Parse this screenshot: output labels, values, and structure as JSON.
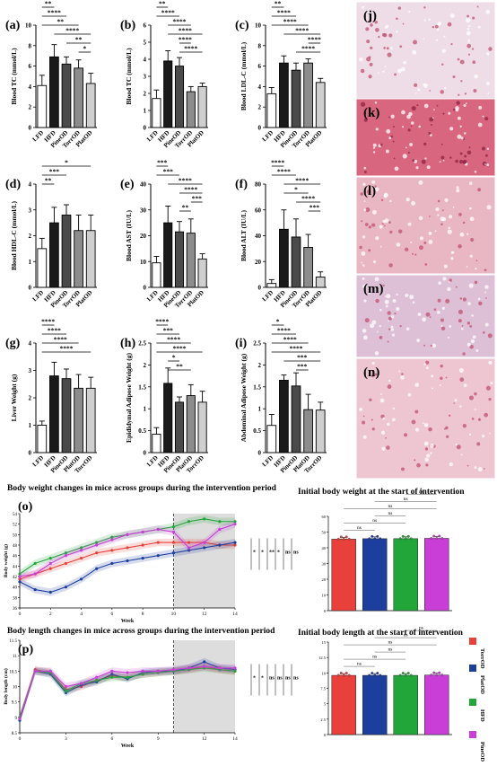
{
  "colors": {
    "bar_fills": [
      "#ffffff",
      "#1a1a1a",
      "#4a4a4a",
      "#8c8c8c",
      "#cfcfcf"
    ],
    "series": [
      "#e8403a",
      "#1c3f9e",
      "#22a63a",
      "#c83ed6"
    ],
    "shade": "#dddddd",
    "tissue_pink": "#e9b4c6",
    "tissue_red": "#d96a88"
  },
  "groups_std": [
    "LFD",
    "HFD",
    "PineOD",
    "TorrOD",
    "PlatOD"
  ],
  "groups_alt": [
    "LFD",
    "HFD",
    "PineOD",
    "PlatOD",
    "TorrOD"
  ],
  "sig_labels": {
    "a": [
      "**",
      "****",
      "**",
      "****",
      "**",
      "*"
    ],
    "b": [
      "**",
      "****",
      "****",
      "****",
      "****",
      "****"
    ],
    "c": [
      "**",
      "****",
      "****",
      "****",
      "****",
      "****"
    ],
    "d": [
      "*",
      "***",
      "**"
    ],
    "e": [
      "***",
      "***",
      "****",
      "****",
      "***",
      "**"
    ],
    "f": [
      "****",
      "****",
      "****",
      "*",
      "****",
      "***"
    ],
    "g": [
      "****",
      "****",
      "****",
      "****"
    ],
    "h": [
      "****",
      "***",
      "****",
      "****",
      "*",
      "**"
    ],
    "i": [
      "*",
      "****",
      "****",
      "****",
      "***",
      "***"
    ]
  },
  "histology_labels": [
    "(j)",
    "(k)",
    "(l)",
    "(m)",
    "(n)"
  ],
  "chart_data": [
    {
      "id": "a",
      "label": "(a)",
      "type": "bar",
      "ylabel": "Blood TC (mmol/L)",
      "categories": [
        "LFD",
        "HFD",
        "PineOD",
        "TorrOD",
        "PlatOD"
      ],
      "values": [
        4.1,
        6.9,
        6.2,
        5.8,
        4.3
      ],
      "errors": [
        1.0,
        1.2,
        0.7,
        0.8,
        1.0
      ],
      "ylim": [
        0,
        10
      ],
      "yticks": [
        0,
        2,
        4,
        6,
        8,
        10
      ]
    },
    {
      "id": "b",
      "label": "(b)",
      "type": "bar",
      "ylabel": "Blood TC (mmol/L)",
      "categories": [
        "LFD",
        "HFD",
        "PineOD",
        "TorrOD",
        "PlatOD"
      ],
      "values": [
        1.7,
        3.9,
        3.6,
        2.1,
        2.4
      ],
      "errors": [
        0.5,
        0.6,
        0.5,
        0.3,
        0.2
      ],
      "ylim": [
        0,
        6
      ],
      "yticks": [
        0,
        1,
        2,
        3,
        4,
        5,
        6
      ]
    },
    {
      "id": "c",
      "label": "(c)",
      "type": "bar",
      "ylabel": "Blood LDL-C (mmol/L)",
      "categories": [
        "LFD",
        "HFD",
        "PineOD",
        "TorrOD",
        "PlatOD"
      ],
      "values": [
        3.3,
        6.3,
        5.6,
        6.3,
        4.4
      ],
      "errors": [
        0.6,
        0.7,
        0.7,
        0.4,
        0.4
      ],
      "ylim": [
        0,
        10
      ],
      "yticks": [
        0,
        2,
        4,
        6,
        8,
        10
      ]
    },
    {
      "id": "d",
      "label": "(d)",
      "type": "bar",
      "ylabel": "Blood HDL-C (mmol/L)",
      "categories": [
        "LFD",
        "HFD",
        "PineOD",
        "TorrOD",
        "PlatOD"
      ],
      "values": [
        1.5,
        2.5,
        2.8,
        2.2,
        2.2
      ],
      "errors": [
        0.4,
        0.6,
        0.4,
        0.6,
        0.6
      ],
      "ylim": [
        0,
        4
      ],
      "yticks": [
        0,
        1,
        2,
        3,
        4
      ]
    },
    {
      "id": "e",
      "label": "(e)",
      "type": "bar",
      "ylabel": "Blood AST (IU/L)",
      "categories": [
        "LFD",
        "HFD",
        "PineOD",
        "TorrOD",
        "PlatOD"
      ],
      "values": [
        9.5,
        25,
        21.5,
        21,
        11
      ],
      "errors": [
        2.5,
        6.5,
        4,
        5.5,
        2
      ],
      "ylim": [
        0,
        40
      ],
      "yticks": [
        0,
        10,
        20,
        30,
        40
      ]
    },
    {
      "id": "f",
      "label": "(f)",
      "type": "bar",
      "ylabel": "Blood ALT (IU/L)",
      "categories": [
        "LFD",
        "HFD",
        "PineOD",
        "TorrOD",
        "PlatOD"
      ],
      "values": [
        3,
        45,
        39,
        31,
        8
      ],
      "errors": [
        3,
        15,
        14,
        10,
        4
      ],
      "ylim": [
        0,
        80
      ],
      "yticks": [
        0,
        20,
        40,
        60,
        80
      ]
    },
    {
      "id": "g",
      "label": "(g)",
      "type": "bar",
      "ylabel": "Liver Weight (g)",
      "categories": [
        "LFD",
        "HFD",
        "PineOD",
        "PlatOD",
        "TorrOD"
      ],
      "values": [
        1.0,
        2.8,
        2.7,
        2.35,
        2.35
      ],
      "errors": [
        0.15,
        0.5,
        0.35,
        0.5,
        0.4
      ],
      "ylim": [
        0,
        4
      ],
      "yticks": [
        0,
        1,
        2,
        3,
        4
      ]
    },
    {
      "id": "h",
      "label": "(h)",
      "type": "bar",
      "ylabel": "Epididymal Adipose Weight (g)",
      "categories": [
        "LFD",
        "HFD",
        "PineOD",
        "PlatOD",
        "TorrOD"
      ],
      "values": [
        0.42,
        1.58,
        1.15,
        1.3,
        1.15
      ],
      "errors": [
        0.15,
        0.35,
        0.12,
        0.25,
        0.25
      ],
      "ylim": [
        0,
        2.5
      ],
      "yticks": [
        0.0,
        0.5,
        1.0,
        1.5,
        2.0,
        2.5
      ]
    },
    {
      "id": "i",
      "label": "(i)",
      "type": "bar",
      "ylabel": "Abdominal Adipose Weight (g)",
      "categories": [
        "LFD",
        "HFD",
        "PineOD",
        "PlatOD",
        "TorrOD"
      ],
      "values": [
        0.62,
        1.65,
        1.52,
        0.98,
        0.97
      ],
      "errors": [
        0.25,
        0.12,
        0.3,
        0.35,
        0.18
      ],
      "ylim": [
        0,
        2.5
      ],
      "yticks": [
        0.0,
        0.5,
        1.0,
        1.5,
        2.0,
        2.5
      ]
    },
    {
      "id": "o",
      "label": "(o)",
      "type": "line",
      "title": "Body weight changes in mice across groups during the intervention period",
      "xlabel": "Week",
      "ylabel": "Body weight (g)",
      "xlim": [
        0,
        14
      ],
      "ylim": [
        36,
        54
      ],
      "xticks": [
        0,
        2,
        4,
        6,
        8,
        10,
        12,
        14
      ],
      "yticks": [
        36,
        38,
        40,
        42,
        44,
        46,
        48,
        50,
        52,
        54
      ],
      "shade_from_week": 10,
      "sig_marks": [
        "*",
        "*",
        "**",
        "*"
      ],
      "ns_marks": [
        "ns",
        "ns"
      ],
      "x": [
        0,
        1,
        2,
        3,
        4,
        5,
        6,
        7,
        8,
        9,
        10,
        11,
        12,
        13,
        14
      ],
      "series": [
        {
          "values": [
            41.5,
            42.5,
            43.5,
            44.5,
            45.5,
            46.5,
            47,
            47.5,
            48,
            48.5,
            48.5,
            48.5,
            48.5,
            48,
            48
          ]
        },
        {
          "values": [
            41,
            39.5,
            39,
            40,
            41.5,
            43.5,
            44.5,
            45,
            45.5,
            46,
            46.5,
            47,
            47.5,
            48,
            48.5
          ]
        },
        {
          "values": [
            42.5,
            44.5,
            45.5,
            46.5,
            47.5,
            48.5,
            49.5,
            50,
            50.5,
            51,
            51.5,
            52.5,
            53,
            52.5,
            52.5
          ]
        },
        {
          "values": [
            42,
            42.5,
            44.5,
            46,
            47,
            48,
            49,
            50,
            50.5,
            51,
            50.5,
            47.5,
            48.5,
            51,
            52
          ]
        }
      ]
    },
    {
      "id": "p",
      "label": "(p)",
      "type": "line",
      "title": "Body length changes in mice across groups during the intervention period",
      "xlabel": "Week",
      "ylabel": "Body length (cm)",
      "xlim": [
        0,
        14
      ],
      "ylim": [
        8.5,
        11.5
      ],
      "xticks": [
        0,
        3,
        6,
        9,
        12,
        14
      ],
      "yticks": [
        8.5,
        9.0,
        9.5,
        10.0,
        10.5,
        11.0,
        11.5
      ],
      "shade_from_week": 10,
      "sig_marks": [
        "*",
        "*"
      ],
      "ns_marks": [
        "ns",
        "ns",
        "ns",
        "ns"
      ],
      "x": [
        0,
        1,
        2,
        3,
        4,
        5,
        6,
        7,
        8,
        9,
        10,
        11,
        12,
        13,
        14
      ],
      "series": [
        {
          "values": [
            9.0,
            10.55,
            10.45,
            9.9,
            10.0,
            10.2,
            10.35,
            10.3,
            10.4,
            10.45,
            10.5,
            10.55,
            10.65,
            10.55,
            10.5
          ]
        },
        {
          "values": [
            8.9,
            10.5,
            10.4,
            9.8,
            10.05,
            10.15,
            10.4,
            10.25,
            10.45,
            10.5,
            10.5,
            10.6,
            10.8,
            10.6,
            10.55
          ]
        },
        {
          "values": [
            9.0,
            10.5,
            10.45,
            9.85,
            10.1,
            10.2,
            10.3,
            10.3,
            10.4,
            10.45,
            10.5,
            10.55,
            10.6,
            10.55,
            10.5
          ]
        },
        {
          "values": [
            8.95,
            10.5,
            10.5,
            10.0,
            10.1,
            10.3,
            10.5,
            10.45,
            10.5,
            10.5,
            10.55,
            10.6,
            10.65,
            10.6,
            10.6
          ]
        }
      ]
    },
    {
      "id": "q",
      "type": "bar",
      "title": "Initial body weight at the start of intervention",
      "ylim": [
        0,
        60
      ],
      "yticks": [
        0,
        10,
        20,
        30,
        40,
        50,
        60
      ],
      "values": [
        45.5,
        45.8,
        45.8,
        46
      ],
      "sig_marks": [
        "ns",
        "ns",
        "ns",
        "ns",
        "ns",
        "ns"
      ]
    },
    {
      "id": "r",
      "type": "bar",
      "title": "Initial body length at the start of intervention",
      "ylim": [
        0,
        15
      ],
      "yticks": [
        0,
        2.5,
        5.0,
        7.5,
        10.0,
        12.5,
        15.0
      ],
      "values": [
        9.6,
        9.6,
        9.6,
        9.65
      ],
      "sig_marks": [
        "ns",
        "ns",
        "ns",
        "ns",
        "ns",
        "ns"
      ],
      "legend": [
        "TorrOD",
        "PlatOD",
        "HFD",
        "PineOD"
      ]
    }
  ]
}
